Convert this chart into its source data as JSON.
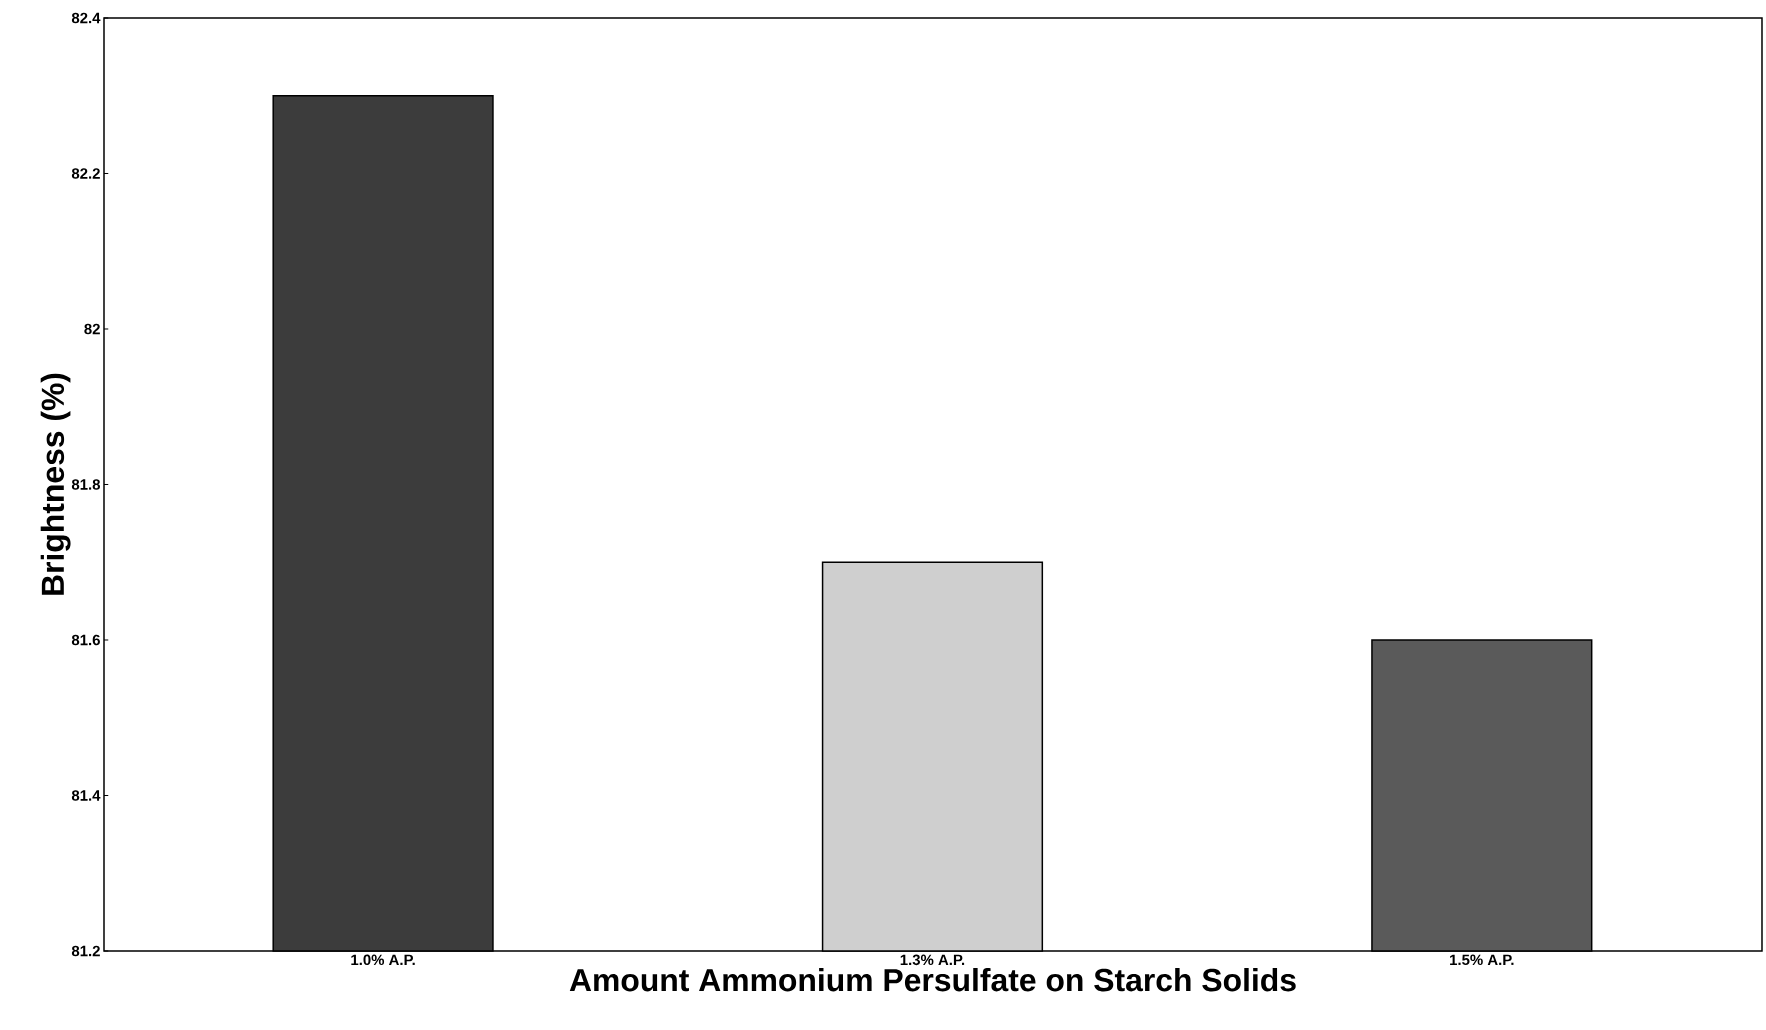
{
  "chart_data": {
    "type": "bar",
    "xlabel": "Amount Ammonium Persulfate on Starch Solids",
    "ylabel": "Brightness (%)",
    "categories": [
      "1.0% A.P.",
      "1.3% A.P.",
      "1.5% A.P."
    ],
    "values": [
      82.3,
      81.7,
      81.6
    ],
    "colors": [
      "#3c3c3c",
      "#cfcfcf",
      "#5a5a5a"
    ],
    "ylim": [
      81.2,
      82.4
    ],
    "yticks": [
      81.2,
      81.4,
      81.6,
      81.8,
      82,
      82.2,
      82.4
    ],
    "grid": false
  }
}
